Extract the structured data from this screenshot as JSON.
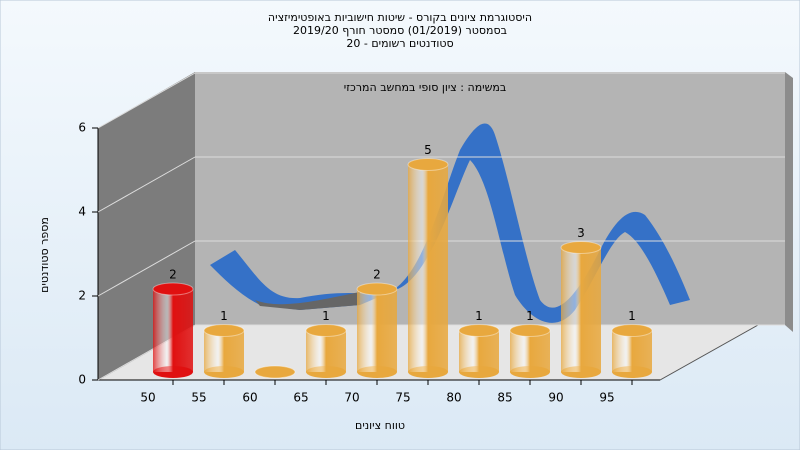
{
  "chart_data": {
    "type": "bar",
    "title": [
      "היסטוגרמת ציונים בקורס - שיטות חישוביות באופטימיזציה",
      "בסמסטר  (01/2019)  סמסטר חורף 2019/20",
      "סטודנטים רשומים - 20"
    ],
    "subtitle": "במשימה : ציון סופי במחשב המרכזי",
    "x_label": "טווח ציונים",
    "y_label": "מספר סטודנטים",
    "categories": [
      "50",
      "55",
      "60",
      "65",
      "70",
      "75",
      "80",
      "85",
      "90",
      "95"
    ],
    "values": [
      2,
      1,
      0,
      1,
      2,
      5,
      1,
      1,
      3,
      1
    ],
    "colors": [
      "#e01010",
      "#e8a83e",
      "#e8a83e",
      "#e8a83e",
      "#e8a83e",
      "#e8a83e",
      "#e8a83e",
      "#e8a83e",
      "#e8a83e",
      "#e8a83e"
    ],
    "ylim": [
      0,
      6
    ],
    "yticks": [
      0,
      2,
      4,
      6
    ],
    "grid": true
  }
}
